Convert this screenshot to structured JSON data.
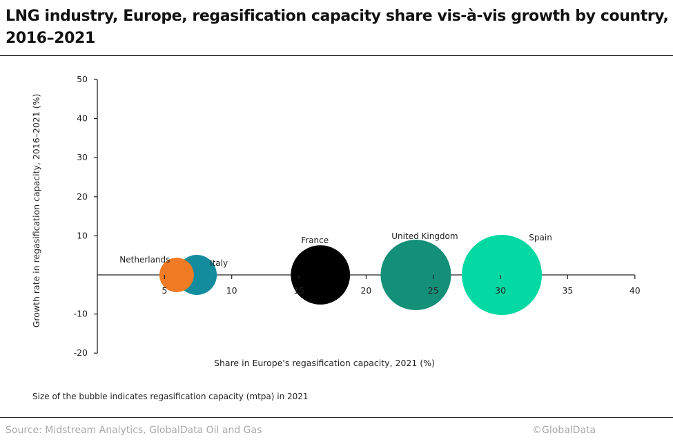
{
  "header": {
    "title": "LNG industry, Europe, regasification capacity share vis-à-vis growth by country, 2016–2021"
  },
  "chart_data": {
    "type": "scatter",
    "subtype": "bubble",
    "title": "LNG industry, Europe, regasification capacity share vis-à-vis growth by country, 2016–2021",
    "xlabel": "Share in Europe's regasification  capacity, 2021 (%)",
    "ylabel": "Growth rate in regasification  capacity, 2016–2021 (%)",
    "xlim": [
      0,
      40
    ],
    "ylim": [
      -20,
      50
    ],
    "x_ticks": [
      5,
      10,
      15,
      20,
      25,
      30,
      35,
      40
    ],
    "x_tick_labels": [
      "5",
      "10",
      "15",
      "20",
      "25",
      "30",
      "35",
      "40"
    ],
    "y_ticks": [
      50,
      40,
      30,
      20,
      10,
      -10,
      -20
    ],
    "y_tick_labels": [
      "50",
      "40",
      "30",
      "20",
      "10",
      "-10",
      "-20"
    ],
    "grid": false,
    "legend": "none",
    "size_note": "Size of the bubble indicates  regasification   capacity (mtpa) in 2021",
    "series": [
      {
        "name": "Netherlands",
        "x": 5.9,
        "y": 0,
        "relative_size": 0.43,
        "color": "#f07b24"
      },
      {
        "name": "Italy",
        "x": 7.4,
        "y": 0,
        "relative_size": 0.5,
        "color": "#138d9e"
      },
      {
        "name": "France",
        "x": 16.6,
        "y": 0,
        "relative_size": 0.74,
        "color": "#000000"
      },
      {
        "name": "United Kingdom",
        "x": 23.7,
        "y": 0,
        "relative_size": 0.88,
        "color": "#148f78"
      },
      {
        "name": "Spain",
        "x": 30.1,
        "y": 0,
        "relative_size": 1.0,
        "color": "#05d9a3"
      }
    ]
  },
  "footer": {
    "source": "Source: Midstream Analytics, GlobalData Oil and Gas",
    "copyright": "©GlobalData"
  }
}
